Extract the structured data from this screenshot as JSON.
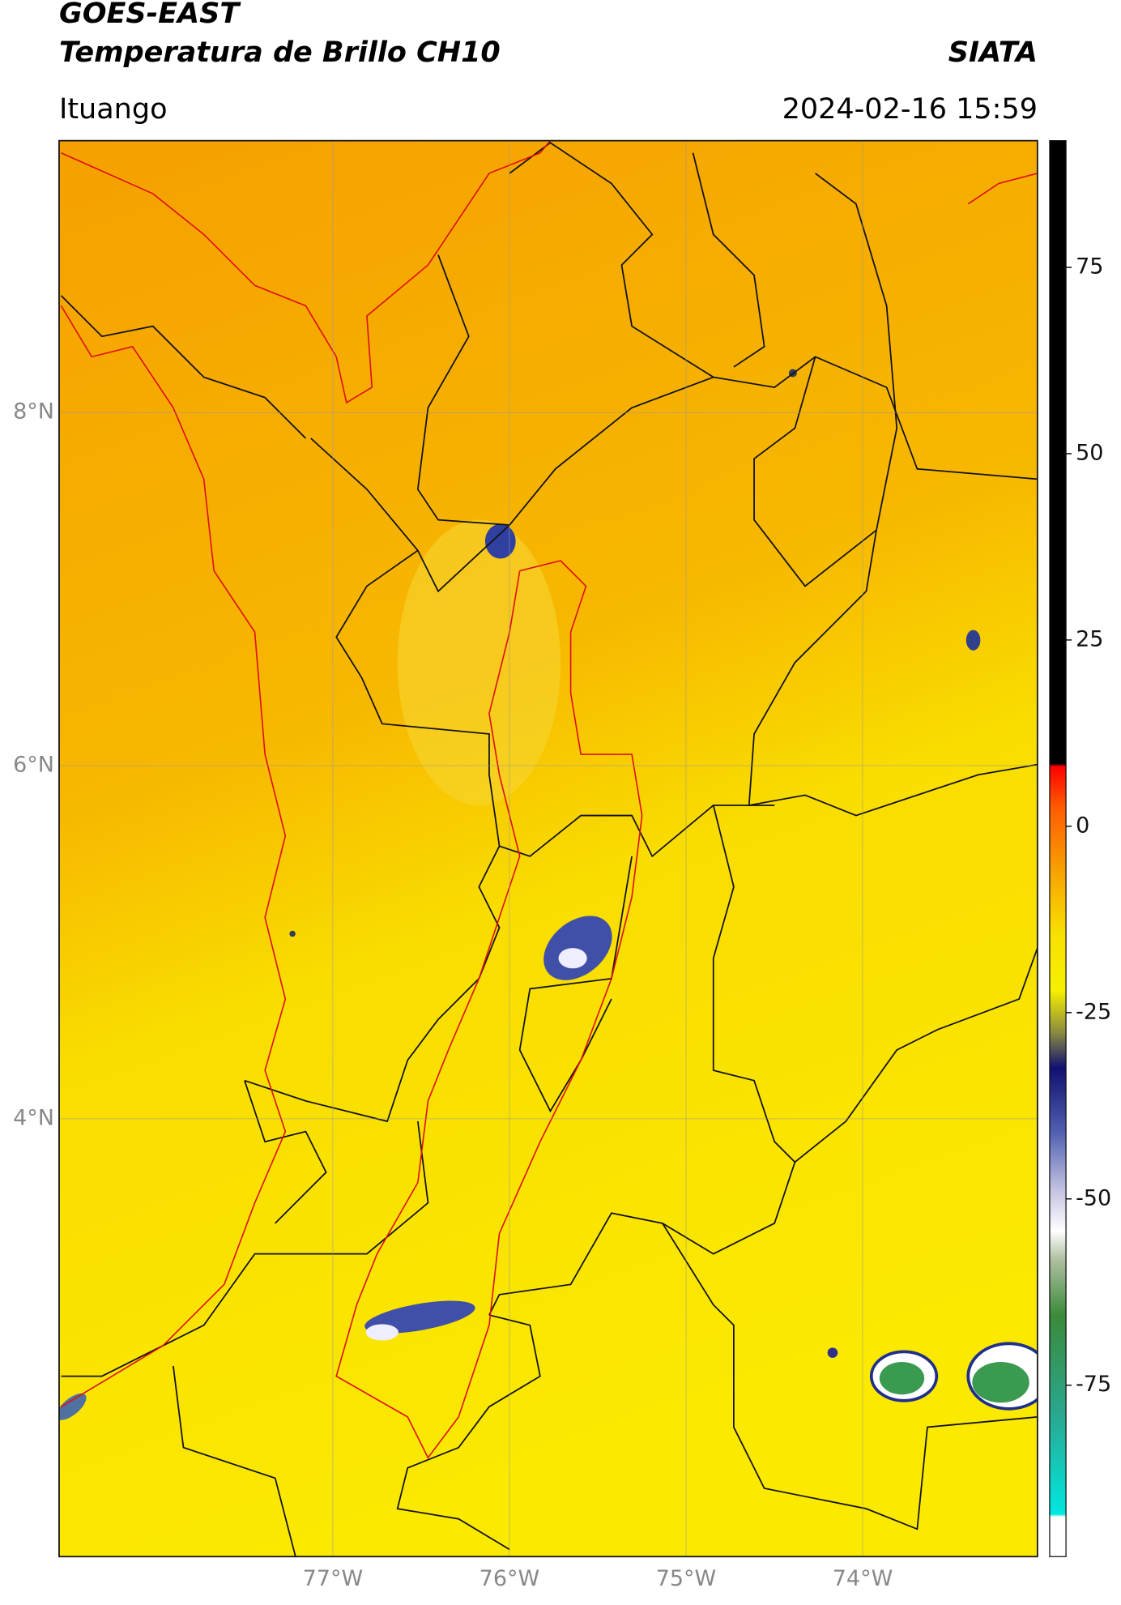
{
  "header": {
    "title_line1": "GOES-EAST",
    "title_line2": "Temperatura de Brillo CH10",
    "source": "SIATA",
    "location": "Ituango",
    "timestamp": "2024-02-16 15:59"
  },
  "map": {
    "xlim": [
      -78.55,
      -73.01
    ],
    "ylim": [
      1.52,
      9.54
    ],
    "lat_ticks": [
      {
        "value": 8,
        "label": "8°N"
      },
      {
        "value": 6,
        "label": "6°N"
      },
      {
        "value": 4,
        "label": "4°N"
      }
    ],
    "lon_ticks": [
      {
        "value": -77,
        "label": "77°W"
      },
      {
        "value": -76,
        "label": "76°W"
      },
      {
        "value": -75,
        "label": "75°W"
      },
      {
        "value": -74,
        "label": "74°W"
      }
    ],
    "grid": true
  },
  "colorbar": {
    "lim": [
      -98,
      92
    ],
    "ticks": [
      75,
      50,
      25,
      0,
      -25,
      -50,
      -75
    ]
  }
}
